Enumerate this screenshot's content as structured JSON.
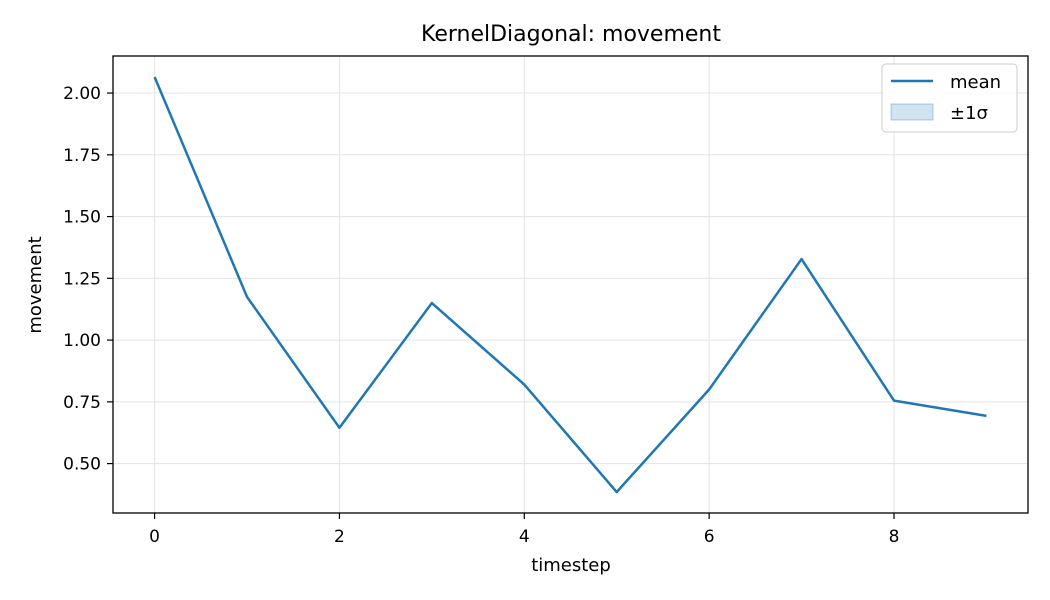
{
  "chart_data": {
    "type": "line",
    "title": "KernelDiagonal: movement",
    "xlabel": "timestep",
    "ylabel": "movement",
    "x": [
      0,
      1,
      2,
      3,
      4,
      5,
      6,
      7,
      8,
      9
    ],
    "series": [
      {
        "name": "mean",
        "color": "#1f77b4",
        "values": [
          2.065,
          1.175,
          0.645,
          1.15,
          0.82,
          0.385,
          0.8,
          1.328,
          0.755,
          0.693
        ]
      }
    ],
    "band": {
      "name": "±1σ",
      "color": "#1f77b4",
      "opacity": 0.2,
      "lower": [
        2.065,
        1.175,
        0.645,
        1.15,
        0.82,
        0.385,
        0.8,
        1.328,
        0.755,
        0.693
      ],
      "upper": [
        2.065,
        1.175,
        0.645,
        1.15,
        0.82,
        0.385,
        0.8,
        1.328,
        0.755,
        0.693
      ]
    },
    "xlim": [
      -0.45,
      9.45
    ],
    "ylim": [
      0.3,
      2.15
    ],
    "xticks": [
      0,
      2,
      4,
      6,
      8
    ],
    "xtick_labels": [
      "0",
      "2",
      "4",
      "6",
      "8"
    ],
    "yticks": [
      0.5,
      0.75,
      1.0,
      1.25,
      1.5,
      1.75,
      2.0
    ],
    "ytick_labels": [
      "0.50",
      "0.75",
      "1.00",
      "1.25",
      "1.50",
      "1.75",
      "2.00"
    ],
    "grid": true,
    "legend_position": "top-right"
  }
}
